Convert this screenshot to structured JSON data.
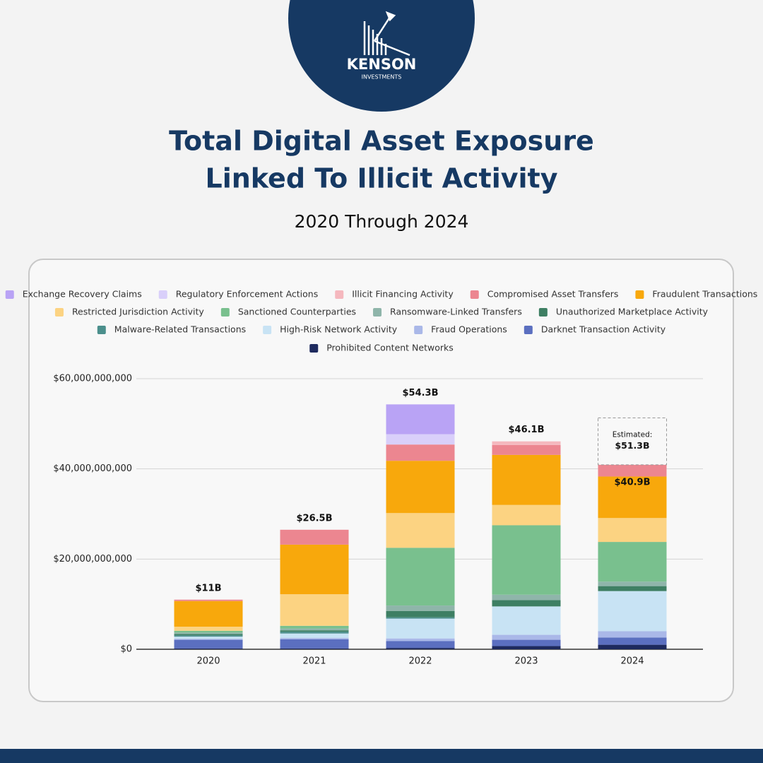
{
  "header": {
    "brand": "KENSON",
    "brand_sub": "INVESTMENTS"
  },
  "chart_data": {
    "type": "stacked-bar",
    "title": [
      "Total Digital Asset Exposure",
      "Linked To Illicit Activity"
    ],
    "subtitle": "2020 Through 2024",
    "categories": [
      "2020",
      "2021",
      "2022",
      "2023",
      "2024"
    ],
    "series": [
      {
        "name": "Exchange Recovery Claims",
        "color": "#b9a3f5",
        "values": [
          0,
          0,
          6600000000.0,
          0,
          0
        ]
      },
      {
        "name": "Regulatory Enforcement Actions",
        "color": "#d9cffa",
        "values": [
          0,
          0,
          2300000000.0,
          0,
          0
        ]
      },
      {
        "name": "Illicit Financing Activity",
        "color": "#f5b8be",
        "values": [
          0,
          0,
          0,
          800000000.0,
          0
        ]
      },
      {
        "name": "Compromised Asset Transfers",
        "color": "#ec8690",
        "values": [
          300000000.0,
          3300000000.0,
          3600000000.0,
          2200000000.0,
          2600000000.0
        ]
      },
      {
        "name": "Fraudulent Transactions",
        "color": "#f8a80c",
        "values": [
          5700000000.0,
          11000000000.0,
          11600000000.0,
          11100000000.0,
          9200000000.0
        ]
      },
      {
        "name": "Restricted Jurisdiction Activity",
        "color": "#fcd382",
        "values": [
          900000000.0,
          7000000000.0,
          7700000000.0,
          4500000000.0,
          5300000000.0
        ]
      },
      {
        "name": "Sanctioned Counterparties",
        "color": "#79c08e",
        "values": [
          400000000.0,
          600000000.0,
          12800000000.0,
          15400000000.0,
          8800000000.0
        ]
      },
      {
        "name": "Ransomware-Linked Transfers",
        "color": "#8fb5aa",
        "values": [
          300000000.0,
          400000000.0,
          1200000000.0,
          1200000000.0,
          1000000000.0
        ]
      },
      {
        "name": "Unauthorized Marketplace Activity",
        "color": "#3e7f63",
        "values": [
          300000000.0,
          300000000.0,
          1400000000.0,
          1400000000.0,
          1100000000.0
        ]
      },
      {
        "name": "Malware-Related Transactions",
        "color": "#4b8f8c",
        "values": [
          300000000.0,
          400000000.0,
          300000000.0,
          0,
          0
        ]
      },
      {
        "name": "High-Risk Network Activity",
        "color": "#c8e3f4",
        "values": [
          500000000.0,
          1000000000.0,
          4400000000.0,
          6300000000.0,
          8900000000.0
        ]
      },
      {
        "name": "Fraud Operations",
        "color": "#aab8e8",
        "values": [
          200000000.0,
          300000000.0,
          600000000.0,
          1100000000.0,
          1400000000.0
        ]
      },
      {
        "name": "Darknet Transaction Activity",
        "color": "#5b6fc0",
        "values": [
          1900000000.0,
          2000000000.0,
          1500000000.0,
          1400000000.0,
          1600000000.0
        ]
      },
      {
        "name": "Prohibited Content Networks",
        "color": "#1e2a5e",
        "values": [
          200000000.0,
          200000000.0,
          300000000.0,
          700000000.0,
          1000000000.0
        ]
      }
    ],
    "totals": {
      "values": [
        11000000000.0,
        26500000000.0,
        54300000000.0,
        46100000000.0,
        40900000000.0
      ],
      "value_labels": [
        "$11B",
        "$26.5B",
        "$54.3B",
        "$46.1B",
        "$40.9B"
      ]
    },
    "estimate": {
      "label": "Estimated:",
      "value": 51300000000.0,
      "value_label": "$51.3B"
    },
    "ylim": [
      0,
      60000000000.0
    ],
    "yticks": [
      {
        "value": 0,
        "label": "$0"
      },
      {
        "value": 20000000000.0,
        "label": "$20,000,000,000"
      },
      {
        "value": 40000000000.0,
        "label": "$40,000,000,000"
      },
      {
        "value": 60000000000.0,
        "label": "$60,000,000,000"
      }
    ],
    "grid": true
  }
}
